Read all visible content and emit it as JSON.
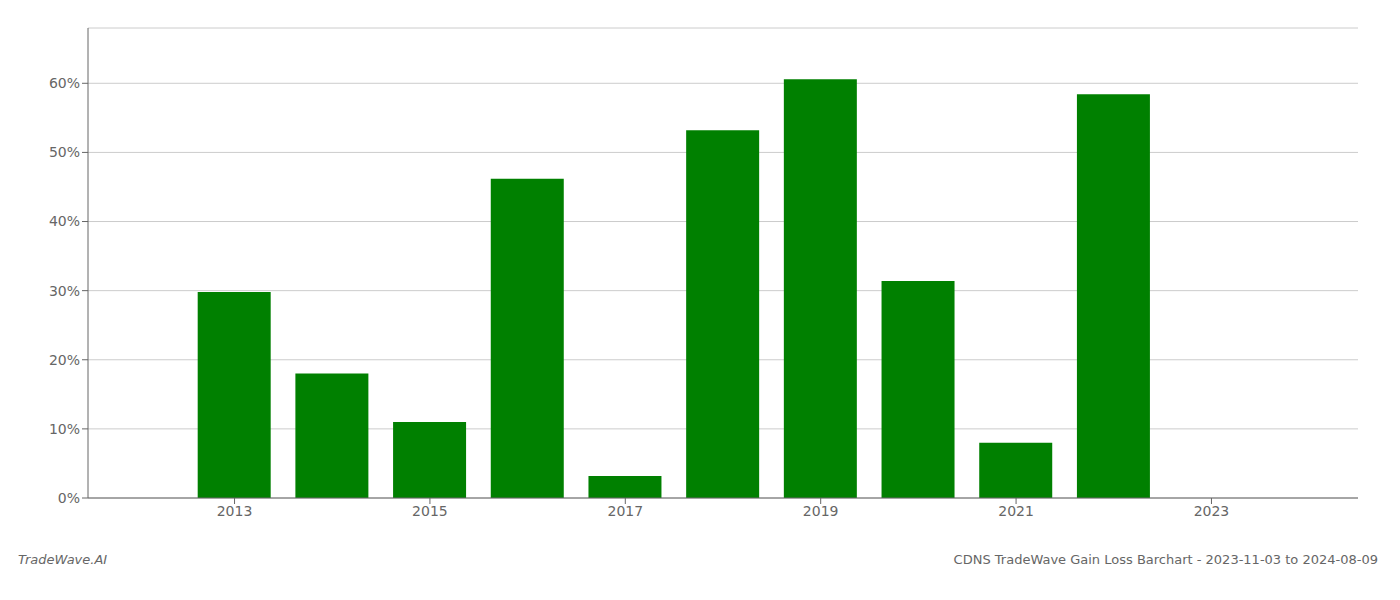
{
  "chart_data": {
    "type": "bar",
    "x": [
      2013,
      2014,
      2015,
      2016,
      2017,
      2018,
      2019,
      2020,
      2021,
      2022
    ],
    "values": [
      29.8,
      18.0,
      11.0,
      46.2,
      3.2,
      53.2,
      60.6,
      31.4,
      8.0,
      58.4
    ],
    "color": "#008000",
    "xlim": [
      2011.5,
      2024.5
    ],
    "xticks": [
      2013,
      2015,
      2017,
      2019,
      2021,
      2023
    ],
    "ylim": [
      0,
      68
    ],
    "yticks": [
      {
        "value": 0,
        "label": "0%"
      },
      {
        "value": 10,
        "label": "10%"
      },
      {
        "value": 20,
        "label": "20%"
      },
      {
        "value": 30,
        "label": "30%"
      },
      {
        "value": 40,
        "label": "40%"
      },
      {
        "value": 50,
        "label": "50%"
      },
      {
        "value": 60,
        "label": "60%"
      }
    ],
    "grid": true,
    "annotations": [
      "TradeWave.AI",
      "CDNS TradeWave Gain Loss Barchart - 2023-11-03 to 2024-08-09"
    ]
  }
}
